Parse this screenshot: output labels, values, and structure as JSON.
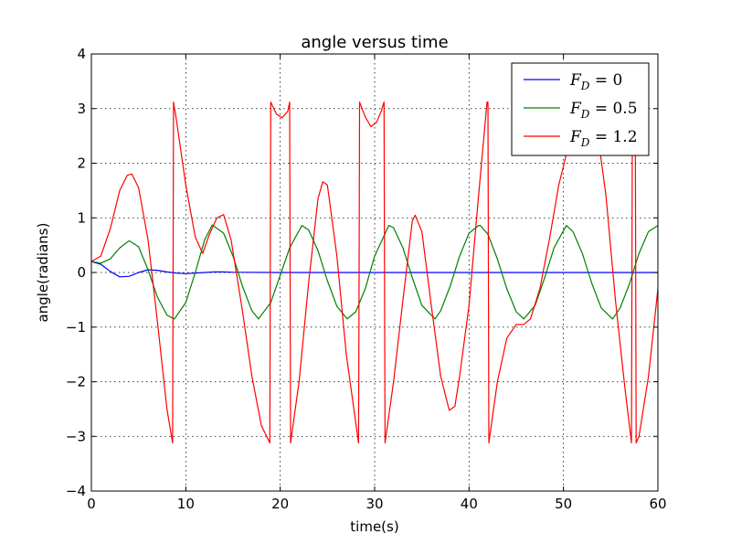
{
  "chart_data": {
    "type": "line",
    "title": "angle versus time",
    "xlabel": "time(s)",
    "ylabel": "angle(radians)",
    "xlim": [
      0,
      60
    ],
    "ylim": [
      -4,
      4
    ],
    "xticks": [
      0,
      10,
      20,
      30,
      40,
      50,
      60
    ],
    "xtick_labels": [
      "0",
      "10",
      "20",
      "30",
      "40",
      "50",
      "60"
    ],
    "yticks": [
      -4,
      -3,
      -2,
      -1,
      0,
      1,
      2,
      3,
      4
    ],
    "ytick_labels": [
      "−4",
      "−3",
      "−2",
      "−1",
      "0",
      "1",
      "2",
      "3",
      "4"
    ],
    "grid": true,
    "legend_position": "top-right",
    "series": [
      {
        "name": "F_D = 0",
        "label": "F_D = 0",
        "color": "#0000ff",
        "x": [
          0,
          1,
          2,
          3,
          4,
          5,
          6,
          7,
          8,
          9,
          10,
          11,
          12,
          13,
          14,
          15,
          20,
          30,
          40,
          50,
          60
        ],
        "y": [
          0.2,
          0.15,
          0.02,
          -0.08,
          -0.07,
          0.0,
          0.05,
          0.04,
          0.01,
          -0.01,
          -0.02,
          -0.01,
          0.0,
          0.01,
          0.01,
          0.005,
          0.0,
          0.0,
          0.0,
          0.0,
          0.0
        ]
      },
      {
        "name": "F_D = 0.5",
        "label": "F_D = 0.5",
        "color": "#008000",
        "x": [
          0,
          1,
          2,
          3,
          4,
          5,
          6,
          7,
          8,
          8.8,
          10,
          11,
          12,
          12.8,
          14,
          15,
          16,
          17,
          17.7,
          19,
          20,
          21,
          22.3,
          23,
          24,
          25,
          26,
          27.1,
          28,
          29,
          30,
          31.5,
          32,
          33,
          34,
          35,
          36.4,
          37,
          38,
          39,
          40,
          41,
          41.2,
          42,
          43,
          44,
          45,
          45.8,
          47,
          48,
          49,
          50.3,
          51,
          52,
          53,
          54,
          55.2,
          56,
          57,
          58,
          59,
          60
        ],
        "y": [
          0.2,
          0.17,
          0.25,
          0.45,
          0.58,
          0.47,
          0.05,
          -0.45,
          -0.78,
          -0.85,
          -0.55,
          0.0,
          0.6,
          0.87,
          0.72,
          0.3,
          -0.25,
          -0.7,
          -0.85,
          -0.55,
          -0.05,
          0.45,
          0.86,
          0.78,
          0.4,
          -0.15,
          -0.62,
          -0.85,
          -0.72,
          -0.3,
          0.3,
          0.86,
          0.82,
          0.45,
          -0.1,
          -0.6,
          -0.85,
          -0.7,
          -0.25,
          0.3,
          0.72,
          0.86,
          0.86,
          0.7,
          0.25,
          -0.3,
          -0.72,
          -0.85,
          -0.6,
          -0.1,
          0.45,
          0.86,
          0.75,
          0.35,
          -0.2,
          -0.65,
          -0.85,
          -0.65,
          -0.2,
          0.35,
          0.75,
          0.86
        ]
      },
      {
        "name": "F_D = 1.2",
        "label": "F_D = 1.2",
        "color": "#ff0000",
        "x": [
          0,
          1,
          2,
          3,
          3.8,
          4.3,
          5,
          6,
          7,
          8,
          8.6,
          8.65,
          8.7,
          9,
          10,
          11,
          11.8,
          12.5,
          13.3,
          14,
          14.8,
          16,
          17,
          18,
          18.9,
          18.95,
          19,
          19.6,
          20.2,
          20.8,
          21.0,
          21.05,
          21.1,
          22,
          23,
          24,
          24.5,
          25,
          26,
          27,
          28.3,
          28.35,
          28.4,
          29,
          29.6,
          30.2,
          30.7,
          31.0,
          31.05,
          31.1,
          32,
          33,
          34,
          34.3,
          35,
          36,
          37,
          37.9,
          38.5,
          39,
          40,
          41,
          41.9,
          42.0,
          42.05,
          42.1,
          43,
          44,
          45,
          45.8,
          46.5,
          47.5,
          48.5,
          49.5,
          50.5,
          51.5,
          52.5,
          53.5,
          54.5,
          55.5,
          56.5,
          57.2,
          57.25,
          57.3,
          57.5,
          57.6,
          57.65,
          57.7,
          58,
          59,
          60
        ],
        "y": [
          0.2,
          0.3,
          0.8,
          1.5,
          1.78,
          1.8,
          1.55,
          0.6,
          -0.9,
          -2.5,
          -3.12,
          0.0,
          3.12,
          2.8,
          1.6,
          0.65,
          0.35,
          0.7,
          1.0,
          1.06,
          0.6,
          -0.7,
          -1.9,
          -2.8,
          -3.12,
          0.0,
          3.12,
          2.9,
          2.83,
          2.95,
          3.12,
          0.0,
          -3.12,
          -2.0,
          -0.2,
          1.35,
          1.66,
          1.6,
          0.3,
          -1.5,
          -3.12,
          0.0,
          3.12,
          2.85,
          2.67,
          2.75,
          2.95,
          3.12,
          0.0,
          -3.12,
          -2.0,
          -0.5,
          0.95,
          1.05,
          0.75,
          -0.6,
          -1.9,
          -2.52,
          -2.45,
          -1.9,
          -0.6,
          1.4,
          3.12,
          3.12,
          0.0,
          -3.12,
          -2.0,
          -1.2,
          -0.95,
          -0.95,
          -0.85,
          -0.3,
          0.6,
          1.6,
          2.3,
          2.9,
          3.12,
          2.7,
          1.4,
          -0.5,
          -2.1,
          -3.12,
          0.0,
          3.12,
          3.12,
          3.12,
          0.0,
          -3.12,
          -3.0,
          -1.9,
          -0.3
        ]
      }
    ]
  }
}
